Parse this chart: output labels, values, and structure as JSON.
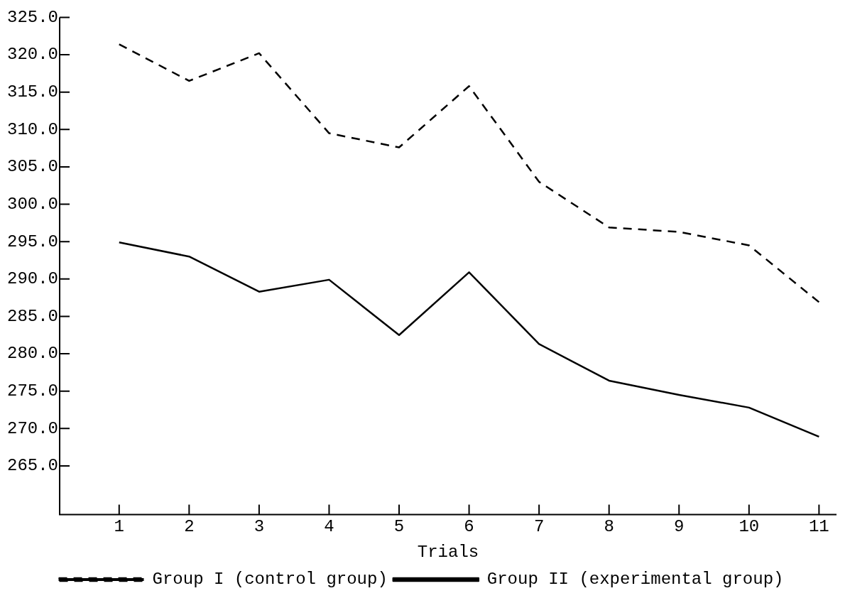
{
  "chart_data": {
    "type": "line",
    "xlabel": "Trials",
    "x": [
      1,
      2,
      3,
      4,
      5,
      6,
      7,
      8,
      9,
      10,
      11
    ],
    "xlim": [
      0.15,
      11.25
    ],
    "xticks": [
      1,
      2,
      3,
      4,
      5,
      6,
      7,
      8,
      9,
      10,
      11
    ],
    "ylim": [
      258.5,
      325
    ],
    "yticks": [
      {
        "value": 265,
        "label": "265.0"
      },
      {
        "value": 270,
        "label": "270.0"
      },
      {
        "value": 275,
        "label": "275.0"
      },
      {
        "value": 280,
        "label": "280.0"
      },
      {
        "value": 285,
        "label": "285.0"
      },
      {
        "value": 290,
        "label": "290.0"
      },
      {
        "value": 295,
        "label": "295.0"
      },
      {
        "value": 300,
        "label": "300.0"
      },
      {
        "value": 305,
        "label": "305.0"
      },
      {
        "value": 310,
        "label": "310.0"
      },
      {
        "value": 315,
        "label": "315.0"
      },
      {
        "value": 320,
        "label": "320.0"
      },
      {
        "value": 325,
        "label": "325.0"
      }
    ],
    "series": [
      {
        "name": "Group I (control group)",
        "color": "#000000",
        "line_style": "dashed",
        "values": [
          321.4,
          316.5,
          320.2,
          309.5,
          307.6,
          315.8,
          303.0,
          296.9,
          296.3,
          294.5,
          286.9
        ]
      },
      {
        "name": "Group II (experimental group)",
        "color": "#000000",
        "line_style": "solid",
        "values": [
          294.9,
          293.0,
          288.3,
          289.9,
          282.5,
          290.9,
          281.3,
          276.4,
          274.5,
          272.8,
          268.9
        ]
      }
    ],
    "grid": false,
    "legend": "bottom"
  }
}
